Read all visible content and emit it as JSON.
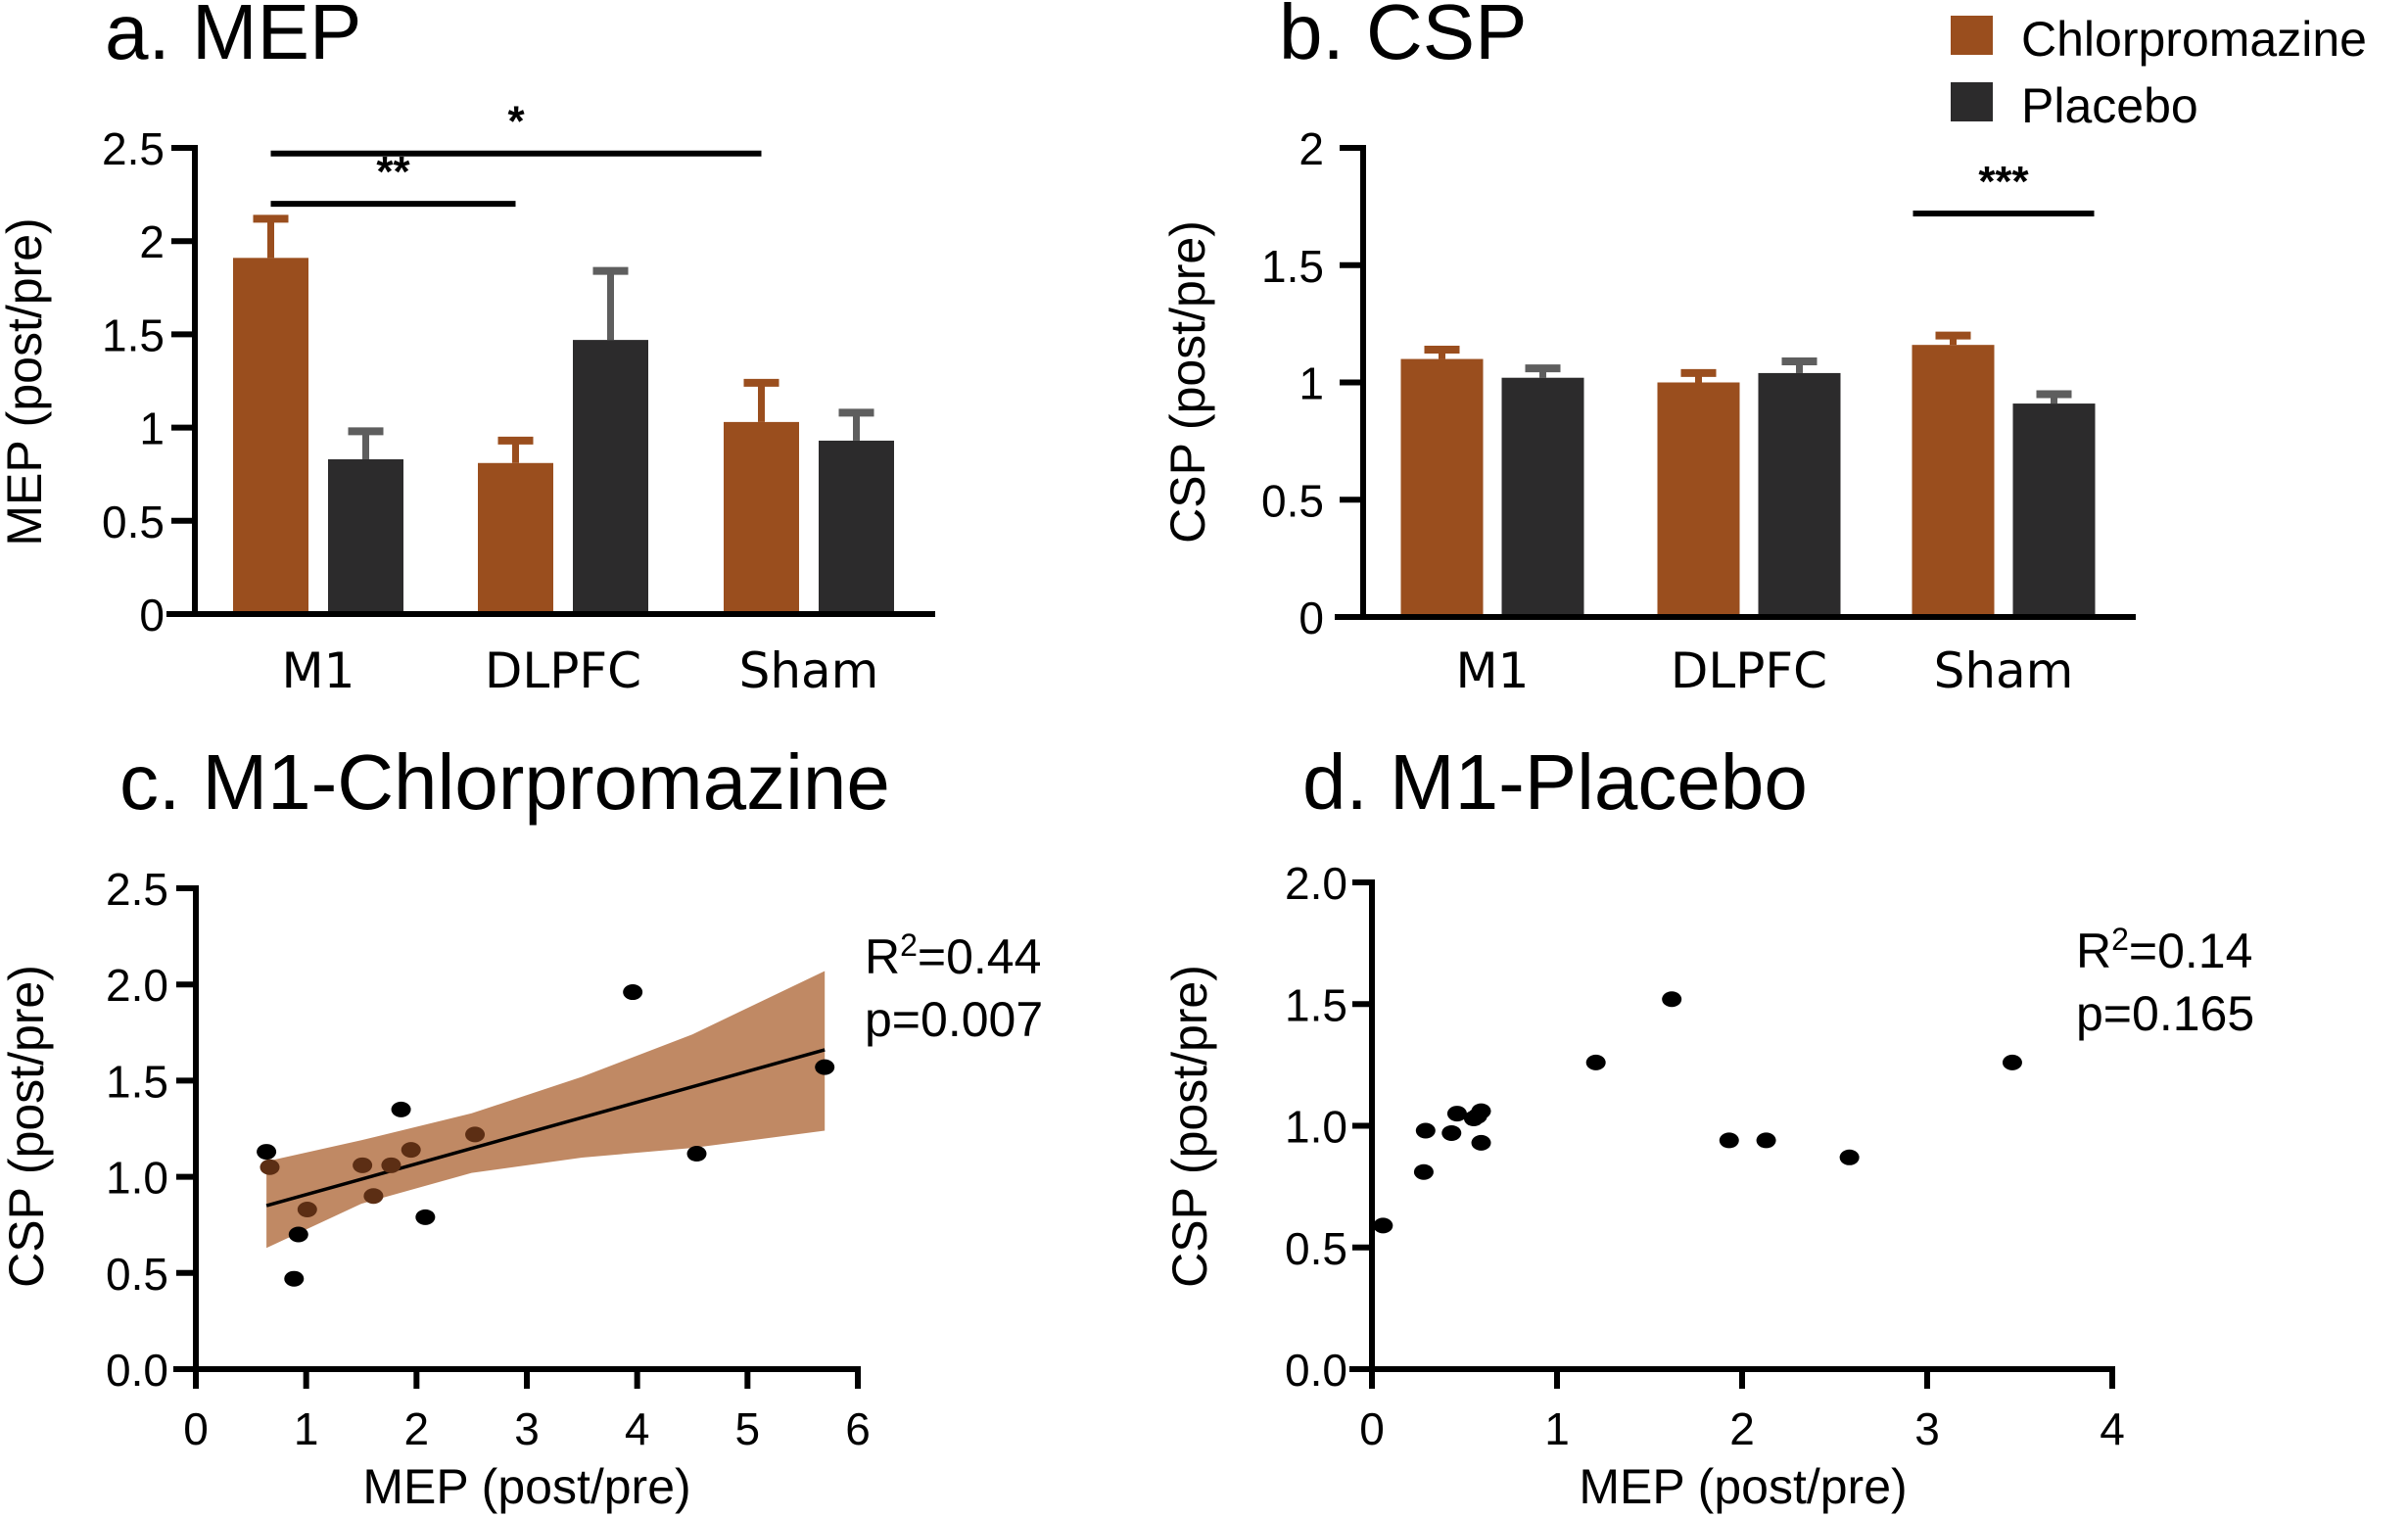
{
  "figure": {
    "legend": {
      "items": [
        {
          "label": "Chlorpromazine",
          "color": "#9A4E1E"
        },
        {
          "label": "Placebo",
          "color": "#2C2B2C"
        }
      ]
    }
  },
  "colors": {
    "chlorpromazine": "#9A4E1E",
    "placebo": "#2C2B2C",
    "placebo_error": "#5E5E5E",
    "ci_band": "#C08964",
    "overlap_point": "#5C2E14",
    "point": "#000000"
  },
  "chart_data": [
    {
      "id": "a",
      "type": "bar",
      "title": "a. MEP",
      "xlabel": "",
      "ylabel": "MEP  (post/pre)",
      "categories": [
        "M1",
        "DLPFC",
        "Sham"
      ],
      "ylim": [
        0,
        2.5
      ],
      "yticks": [
        0,
        0.5,
        1,
        1.5,
        2,
        2.5
      ],
      "ytick_labels": [
        "0",
        "0.5",
        "1",
        "1.5",
        "2",
        "2.5"
      ],
      "series": [
        {
          "name": "Chlorpromazine",
          "values": [
            1.91,
            0.81,
            1.03
          ],
          "error_upper": [
            2.12,
            0.93,
            1.24
          ]
        },
        {
          "name": "Placebo",
          "values": [
            0.83,
            1.47,
            0.93
          ],
          "error_upper": [
            0.98,
            1.84,
            1.08
          ]
        }
      ],
      "significance": [
        {
          "label": "**",
          "from": "M1 Chlorpromazine",
          "to": "DLPFC Chlorpromazine",
          "level": 2.2
        },
        {
          "label": "*",
          "from": "M1 Chlorpromazine",
          "to": "Sham Chlorpromazine",
          "level": 2.47
        }
      ],
      "grid": false
    },
    {
      "id": "b",
      "type": "bar",
      "title": "b. CSP",
      "xlabel": "",
      "ylabel": "CSP  (post/pre)",
      "categories": [
        "M1",
        "DLPFC",
        "Sham"
      ],
      "ylim": [
        0,
        2
      ],
      "yticks": [
        0,
        0.5,
        1,
        1.5,
        2
      ],
      "ytick_labels": [
        "0",
        "0.5",
        "1",
        "1.5",
        "2"
      ],
      "series": [
        {
          "name": "Chlorpromazine",
          "values": [
            1.1,
            1.0,
            1.16
          ],
          "error_upper": [
            1.14,
            1.04,
            1.2
          ]
        },
        {
          "name": "Placebo",
          "values": [
            1.02,
            1.04,
            0.91
          ],
          "error_upper": [
            1.06,
            1.09,
            0.95
          ]
        }
      ],
      "significance": [
        {
          "label": "***",
          "from": "Sham Chlorpromazine",
          "to": "Sham Placebo",
          "level": 1.72
        }
      ],
      "legend_position": "top-right",
      "grid": false
    },
    {
      "id": "c",
      "type": "scatter",
      "title": "c. M1-Chlorpromazine",
      "xlabel": "MEP (post/pre)",
      "ylabel": "CSP  (post/pre)",
      "xlim": [
        0,
        6
      ],
      "ylim": [
        0,
        2.5
      ],
      "xticks": [
        0,
        1,
        2,
        3,
        4,
        5,
        6
      ],
      "xtick_labels": [
        "0",
        "1",
        "2",
        "3",
        "4",
        "5",
        "6"
      ],
      "yticks": [
        0,
        0.5,
        1,
        1.5,
        2,
        2.5
      ],
      "ytick_labels": [
        "0.0",
        "0.5",
        "1.0",
        "1.5",
        "2.0",
        "2.5"
      ],
      "points": [
        {
          "x": 0.64,
          "y": 1.13,
          "shade": "black"
        },
        {
          "x": 0.67,
          "y": 1.05,
          "shade": "brown"
        },
        {
          "x": 0.89,
          "y": 0.47,
          "shade": "black"
        },
        {
          "x": 0.93,
          "y": 0.7,
          "shade": "black"
        },
        {
          "x": 1.01,
          "y": 0.83,
          "shade": "brown"
        },
        {
          "x": 1.51,
          "y": 1.06,
          "shade": "brown"
        },
        {
          "x": 1.61,
          "y": 0.9,
          "shade": "brown"
        },
        {
          "x": 1.77,
          "y": 1.06,
          "shade": "brown"
        },
        {
          "x": 1.86,
          "y": 1.35,
          "shade": "black"
        },
        {
          "x": 1.95,
          "y": 1.14,
          "shade": "brown"
        },
        {
          "x": 2.08,
          "y": 0.79,
          "shade": "black"
        },
        {
          "x": 2.53,
          "y": 1.22,
          "shade": "brown"
        },
        {
          "x": 3.96,
          "y": 1.96,
          "shade": "black"
        },
        {
          "x": 4.54,
          "y": 1.12,
          "shade": "black"
        },
        {
          "x": 5.7,
          "y": 1.57,
          "shade": "black"
        }
      ],
      "regression": {
        "x": [
          0.64,
          5.7
        ],
        "y": [
          0.85,
          1.66
        ],
        "ci_band": {
          "x": [
            0.64,
            1.5,
            2.5,
            3.5,
            4.5,
            5.7
          ],
          "upper": [
            1.08,
            1.19,
            1.33,
            1.52,
            1.74,
            2.07
          ],
          "lower": [
            0.63,
            0.86,
            1.02,
            1.1,
            1.15,
            1.24
          ]
        }
      },
      "annotations": [
        "R²=0.44",
        "p=0.007"
      ],
      "stats": {
        "r_squared_label": "R",
        "r_squared_sup": "2",
        "r_squared_value": "=0.44",
        "p_label": "p=0.007"
      },
      "grid": false
    },
    {
      "id": "d",
      "type": "scatter",
      "title": "d. M1-Placebo",
      "xlabel": "MEP (post/pre)",
      "ylabel": "CSP  (post/pre)",
      "xlim": [
        0,
        4
      ],
      "ylim": [
        0,
        2
      ],
      "xticks": [
        0,
        1,
        2,
        3,
        4
      ],
      "xtick_labels": [
        "0",
        "1",
        "2",
        "3",
        "4"
      ],
      "yticks": [
        0,
        0.5,
        1,
        1.5,
        2
      ],
      "ytick_labels": [
        "0.0",
        "0.5",
        "1.0",
        "1.5",
        "2.0"
      ],
      "points": [
        {
          "x": 0.06,
          "y": 0.59
        },
        {
          "x": 0.28,
          "y": 0.81
        },
        {
          "x": 0.29,
          "y": 0.98
        },
        {
          "x": 0.43,
          "y": 0.97
        },
        {
          "x": 0.46,
          "y": 1.05
        },
        {
          "x": 0.55,
          "y": 1.03
        },
        {
          "x": 0.57,
          "y": 1.04
        },
        {
          "x": 0.59,
          "y": 1.06
        },
        {
          "x": 0.59,
          "y": 0.93
        },
        {
          "x": 1.21,
          "y": 1.26
        },
        {
          "x": 1.62,
          "y": 1.52
        },
        {
          "x": 1.93,
          "y": 0.94
        },
        {
          "x": 2.13,
          "y": 0.94
        },
        {
          "x": 2.58,
          "y": 0.87
        },
        {
          "x": 3.46,
          "y": 1.26
        }
      ],
      "annotations": [
        "R²=0.14",
        "p=0.165"
      ],
      "stats": {
        "r_squared_label": "R",
        "r_squared_sup": "2",
        "r_squared_value": "=0.14",
        "p_label": "p=0.165"
      },
      "grid": false
    }
  ]
}
